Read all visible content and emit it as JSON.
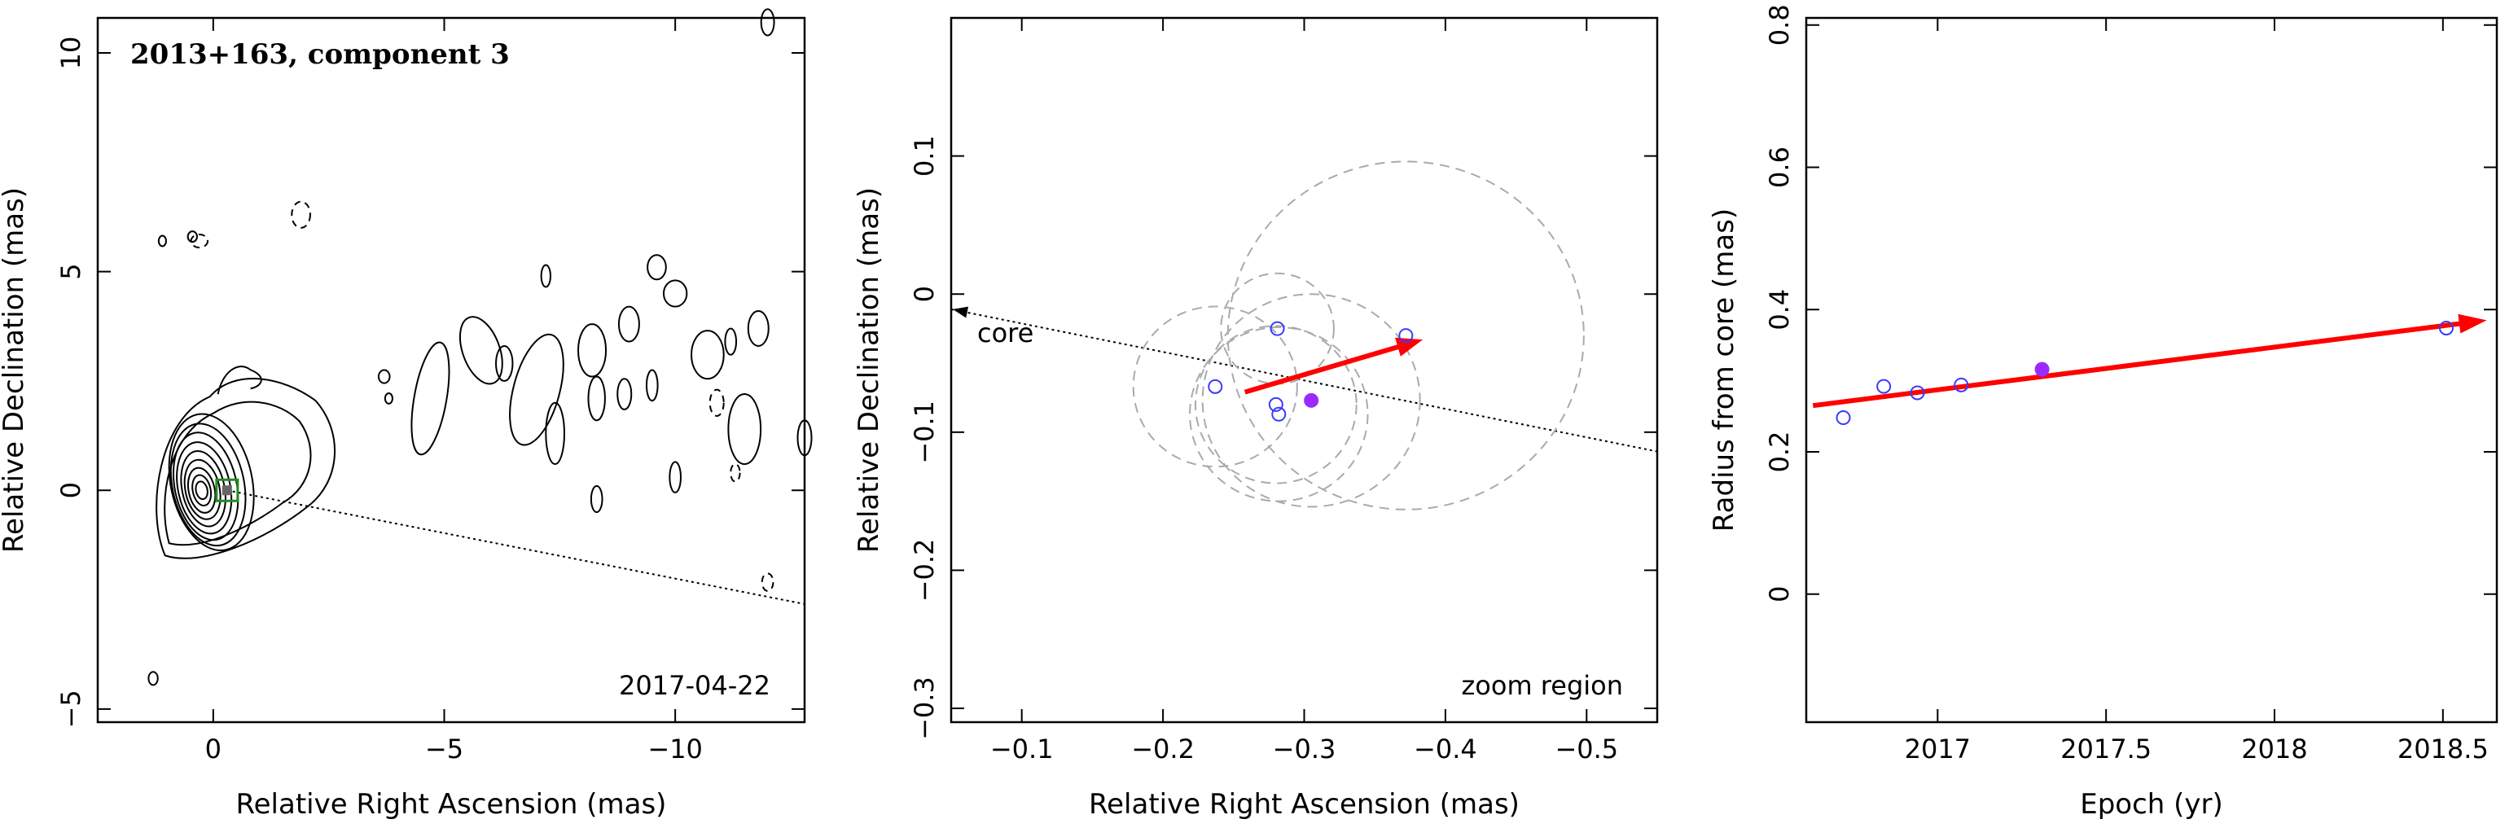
{
  "colors": {
    "trend": "#ff0000",
    "point": "#3a3aff",
    "highlight": "#9a2aff",
    "error_circle": "#aaaaaa",
    "marker": "#228b22"
  },
  "chart_data": [
    {
      "type": "contour",
      "title": "2013+163, component 3",
      "annotation": "2017-04-22",
      "xlabel": "Relative Right Ascension (mas)",
      "ylabel": "Relative Declination (mas)",
      "xlim": [
        2.5,
        -12.8
      ],
      "ylim": [
        -5.3,
        10.8
      ],
      "xticks": [
        {
          "v": 0,
          "label": "0"
        },
        {
          "v": -5,
          "label": "−5"
        },
        {
          "v": -10,
          "label": "−10"
        }
      ],
      "yticks": [
        {
          "v": -5,
          "label": "−5"
        },
        {
          "v": 0,
          "label": "0"
        },
        {
          "v": 5,
          "label": "5"
        },
        {
          "v": 10,
          "label": "10"
        }
      ],
      "component_marker": {
        "x": -0.3,
        "y": 0.0
      },
      "jet_direction_line": {
        "x1": -0.3,
        "y1": 0.0,
        "x2": -12.8,
        "y2": -2.6
      }
    },
    {
      "type": "scatter",
      "annotation": "zoom region",
      "core_label": "core",
      "xlabel": "Relative Right Ascension (mas)",
      "ylabel": "Relative Declination (mas)",
      "xlim": [
        -0.05,
        -0.55
      ],
      "ylim": [
        -0.31,
        0.2
      ],
      "xticks": [
        {
          "v": -0.1,
          "label": "−0.1"
        },
        {
          "v": -0.2,
          "label": "−0.2"
        },
        {
          "v": -0.3,
          "label": "−0.3"
        },
        {
          "v": -0.4,
          "label": "−0.4"
        },
        {
          "v": -0.5,
          "label": "−0.5"
        }
      ],
      "yticks": [
        {
          "v": -0.3,
          "label": "−0.3"
        },
        {
          "v": -0.2,
          "label": "−0.2"
        },
        {
          "v": -0.1,
          "label": "−0.1"
        },
        {
          "v": 0,
          "label": "0"
        },
        {
          "v": 0.1,
          "label": "0.1"
        }
      ],
      "points": [
        {
          "x": -0.237,
          "y": -0.067,
          "err": 0.058
        },
        {
          "x": -0.281,
          "y": -0.025,
          "err": 0.04
        },
        {
          "x": -0.28,
          "y": -0.08,
          "err": 0.057
        },
        {
          "x": -0.282,
          "y": -0.087,
          "err": 0.063
        },
        {
          "x": -0.372,
          "y": -0.03,
          "err": 0.126
        },
        {
          "x": -0.305,
          "y": -0.077,
          "err": 0.077,
          "highlight": true
        }
      ],
      "trend": {
        "x1": -0.258,
        "y1": -0.071,
        "x2": -0.384,
        "y2": -0.033
      },
      "core_line": {
        "x1": -0.05,
        "y1": -0.011,
        "x2": -0.55,
        "y2": -0.114
      }
    },
    {
      "type": "scatter",
      "xlabel": "Epoch (yr)",
      "ylabel": "Radius from core (mas)",
      "xlim": [
        16.61,
        18.66
      ],
      "ylim": [
        -0.18,
        0.81
      ],
      "xticks": [
        {
          "v": 17,
          "label": "2017"
        },
        {
          "v": 17.5,
          "label": "2017.5"
        },
        {
          "v": 18,
          "label": "2018"
        },
        {
          "v": 18.5,
          "label": "2018.5"
        }
      ],
      "yticks": [
        {
          "v": 0,
          "label": "0"
        },
        {
          "v": 0.2,
          "label": "0.2"
        },
        {
          "v": 0.4,
          "label": "0.4"
        },
        {
          "v": 0.6,
          "label": "0.6"
        },
        {
          "v": 0.8,
          "label": "0.8"
        }
      ],
      "points": [
        {
          "x": 16.72,
          "y": 0.248
        },
        {
          "x": 16.84,
          "y": 0.292
        },
        {
          "x": 16.94,
          "y": 0.283
        },
        {
          "x": 17.07,
          "y": 0.294
        },
        {
          "x": 17.31,
          "y": 0.316,
          "highlight": true
        },
        {
          "x": 18.51,
          "y": 0.374
        }
      ],
      "trend": {
        "x1": 16.63,
        "y1": 0.265,
        "x2": 18.63,
        "y2": 0.385
      }
    }
  ]
}
